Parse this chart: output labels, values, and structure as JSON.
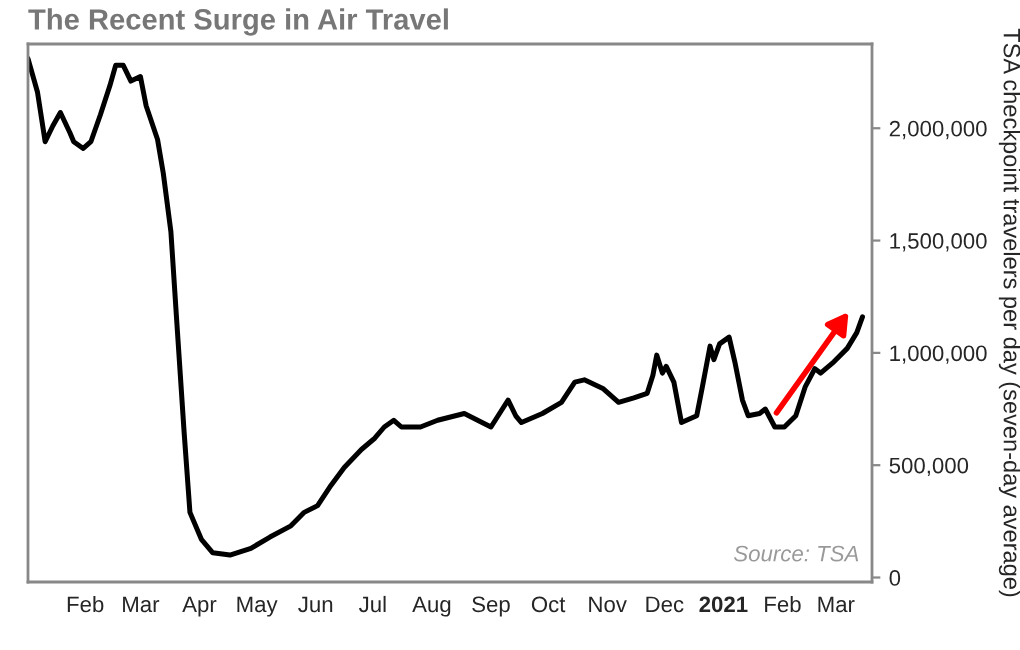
{
  "chart_data": {
    "type": "line",
    "title": "The Recent Surge in Air Travel",
    "ylabel": "TSA checkpoint travelers per day (seven-day average)",
    "annotations": [
      "Source: TSA"
    ],
    "x": [
      "2020-01-02",
      "2020-01-07",
      "2020-01-11",
      "2020-01-15",
      "2020-01-19",
      "2020-01-24",
      "2020-01-26",
      "2020-01-31",
      "2020-02-04",
      "2020-02-09",
      "2020-02-14",
      "2020-02-17",
      "2020-02-21",
      "2020-02-25",
      "2020-03-01",
      "2020-03-04",
      "2020-03-10",
      "2020-03-13",
      "2020-03-17",
      "2020-03-20",
      "2020-03-24",
      "2020-03-27",
      "2020-04-02",
      "2020-04-08",
      "2020-04-17",
      "2020-04-28",
      "2020-05-08",
      "2020-05-19",
      "2020-05-26",
      "2020-06-02",
      "2020-06-09",
      "2020-06-16",
      "2020-06-25",
      "2020-07-02",
      "2020-07-07",
      "2020-07-12",
      "2020-07-16",
      "2020-07-26",
      "2020-08-04",
      "2020-08-18",
      "2020-09-01",
      "2020-09-07",
      "2020-09-10",
      "2020-09-14",
      "2020-09-17",
      "2020-09-28",
      "2020-10-08",
      "2020-10-15",
      "2020-10-20",
      "2020-10-30",
      "2020-11-07",
      "2020-11-15",
      "2020-11-22",
      "2020-11-25",
      "2020-11-27",
      "2020-11-30",
      "2020-12-02",
      "2020-12-06",
      "2020-12-10",
      "2020-12-18",
      "2020-12-21",
      "2020-12-25",
      "2020-12-27",
      "2020-12-30",
      "2021-01-04",
      "2021-01-07",
      "2021-01-11",
      "2021-01-14",
      "2021-01-20",
      "2021-01-23",
      "2021-01-28",
      "2021-02-02",
      "2021-02-08",
      "2021-02-13",
      "2021-02-18",
      "2021-02-21",
      "2021-02-28",
      "2021-03-07",
      "2021-03-12",
      "2021-03-15"
    ],
    "series": [
      {
        "color": "#000000",
        "values": [
          2310000,
          2160000,
          1940000,
          2010000,
          2070000,
          1980000,
          1940000,
          1910000,
          1940000,
          2060000,
          2190000,
          2280000,
          2280000,
          2210000,
          2230000,
          2100000,
          1950000,
          1800000,
          1540000,
          1150000,
          640000,
          290000,
          170000,
          110000,
          100000,
          130000,
          180000,
          230000,
          290000,
          320000,
          410000,
          490000,
          570000,
          620000,
          670000,
          700000,
          670000,
          670000,
          700000,
          730000,
          670000,
          750000,
          790000,
          720000,
          690000,
          730000,
          780000,
          870000,
          880000,
          840000,
          780000,
          800000,
          820000,
          900000,
          990000,
          910000,
          940000,
          870000,
          690000,
          720000,
          850000,
          1030000,
          970000,
          1040000,
          1070000,
          960000,
          790000,
          720000,
          730000,
          750000,
          670000,
          670000,
          720000,
          850000,
          930000,
          910000,
          960000,
          1020000,
          1090000,
          1160000
        ]
      }
    ],
    "xlim": [
      "2020-01-02",
      "2021-03-20"
    ],
    "xticks": [
      {
        "value": "2020-02-01",
        "label": "Feb"
      },
      {
        "value": "2020-03-01",
        "label": "Mar"
      },
      {
        "value": "2020-04-01",
        "label": "Apr"
      },
      {
        "value": "2020-05-01",
        "label": "May"
      },
      {
        "value": "2020-06-01",
        "label": "Jun"
      },
      {
        "value": "2020-07-01",
        "label": "Jul"
      },
      {
        "value": "2020-08-01",
        "label": "Aug"
      },
      {
        "value": "2020-09-01",
        "label": "Sep"
      },
      {
        "value": "2020-10-01",
        "label": "Oct"
      },
      {
        "value": "2020-11-01",
        "label": "Nov"
      },
      {
        "value": "2020-12-01",
        "label": "Dec"
      },
      {
        "value": "2021-01-01",
        "label": "2021"
      },
      {
        "value": "2021-02-01",
        "label": "Feb"
      },
      {
        "value": "2021-03-01",
        "label": "Mar"
      }
    ],
    "ylim": [
      -20000,
      2375000
    ],
    "yticks": [
      0,
      {
        "value": 500000,
        "label": "500,000"
      },
      {
        "value": 1000000,
        "label": "1,000,000"
      },
      {
        "value": 1500000,
        "label": "1,500,000"
      },
      {
        "value": 2000000,
        "label": "2,000,000"
      }
    ],
    "grid": false,
    "legend": false,
    "marker": "none",
    "line_style": "solid"
  }
}
